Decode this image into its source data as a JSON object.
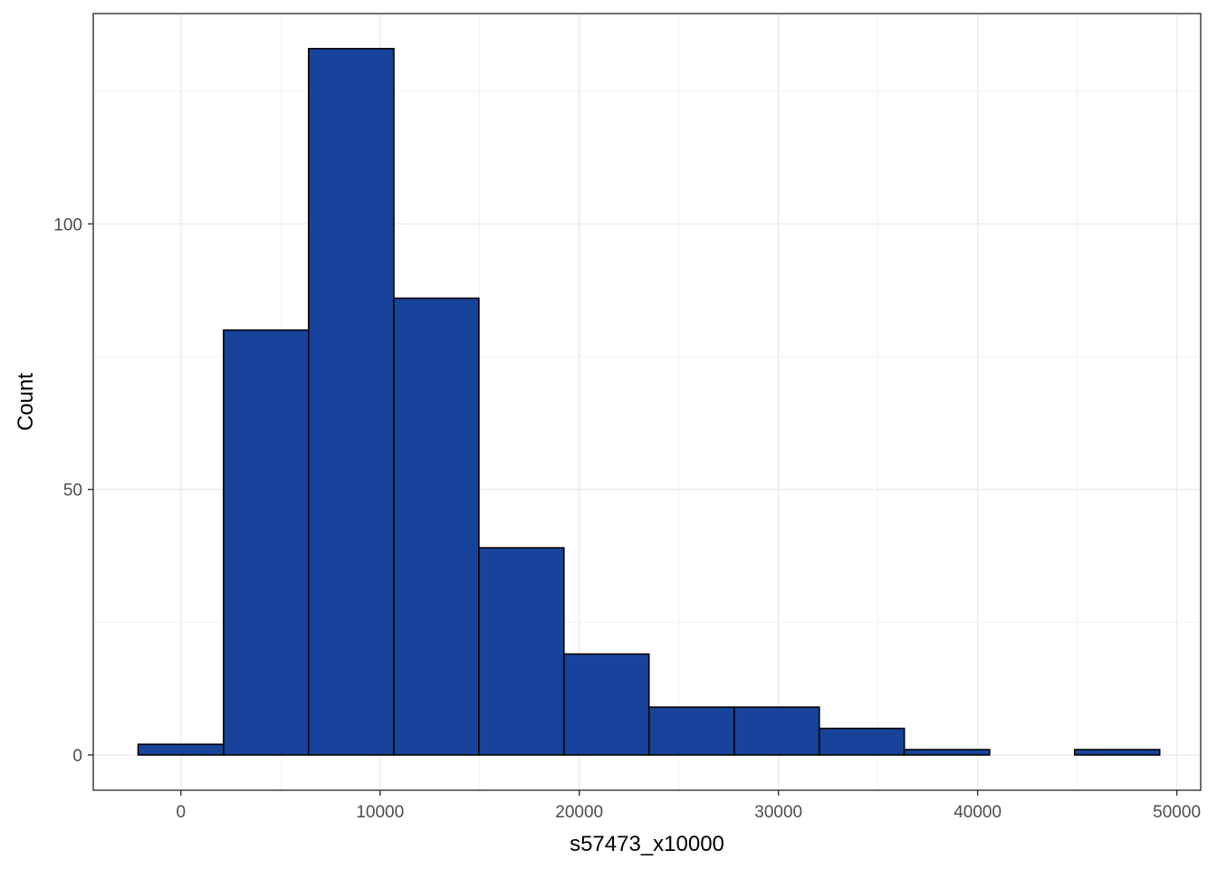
{
  "chart_data": {
    "type": "bar",
    "xlabel": "s57473_x10000",
    "ylabel": "Count",
    "xlim": [
      -4400,
      51200
    ],
    "ylim": [
      -6.65,
      139.6
    ],
    "x_ticks": [
      0,
      10000,
      20000,
      30000,
      40000,
      50000
    ],
    "y_ticks": [
      0,
      50,
      100
    ],
    "grid": true,
    "bar_fill": "#17449A",
    "bar_outline": "#000000",
    "bins": [
      {
        "x0": -2150,
        "x1": 2140,
        "count": 2
      },
      {
        "x0": 2140,
        "x1": 6410,
        "count": 80
      },
      {
        "x0": 6410,
        "x1": 10690,
        "count": 133
      },
      {
        "x0": 10690,
        "x1": 14960,
        "count": 86
      },
      {
        "x0": 14960,
        "x1": 19230,
        "count": 39
      },
      {
        "x0": 19230,
        "x1": 23500,
        "count": 19
      },
      {
        "x0": 23500,
        "x1": 27780,
        "count": 9
      },
      {
        "x0": 27780,
        "x1": 32050,
        "count": 9
      },
      {
        "x0": 32050,
        "x1": 36320,
        "count": 5
      },
      {
        "x0": 36320,
        "x1": 40600,
        "count": 1
      },
      {
        "x0": 40600,
        "x1": 44870,
        "count": 0
      },
      {
        "x0": 44870,
        "x1": 49140,
        "count": 1
      }
    ]
  }
}
